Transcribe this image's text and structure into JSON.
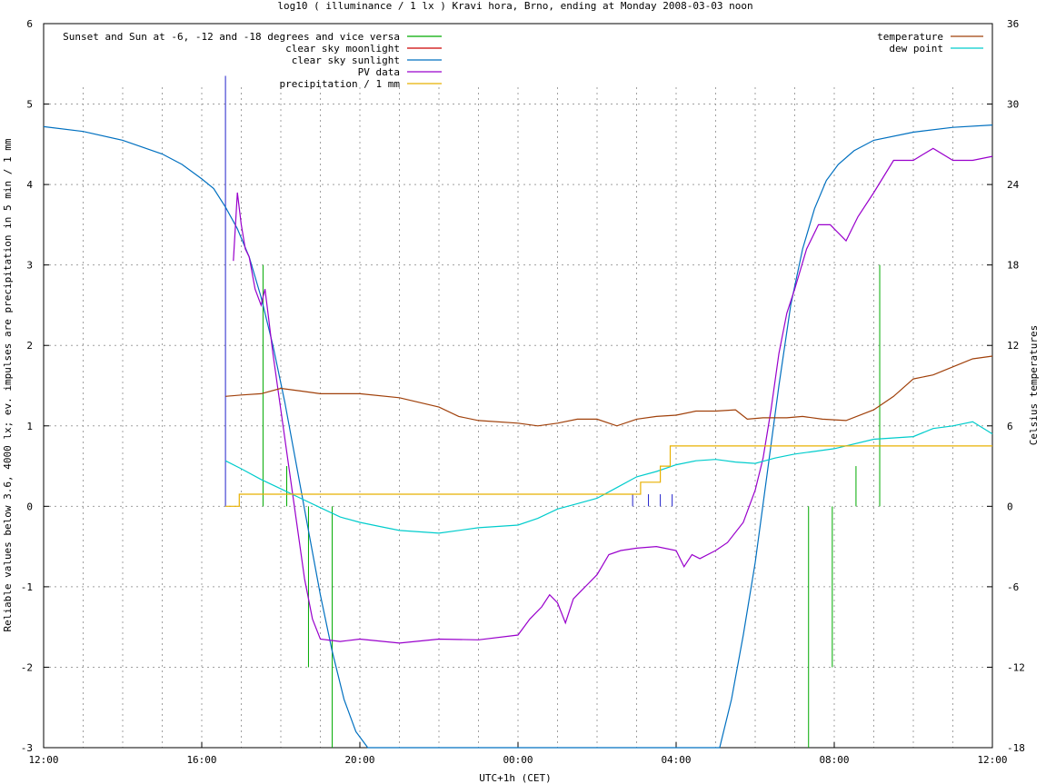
{
  "chart_data": {
    "type": "line",
    "title": "log10 ( illuminance / 1 lx ) Kravi hora, Brno, ending at Monday 2008-03-03 noon",
    "xlabel": "UTC+1h (CET)",
    "ylabel": "Reliable values below 3.6, 4000 lx; ev. impulses are precipitation in 5 min / 1 mm",
    "y2label": "Celsius temperatures",
    "x_ticks": [
      {
        "h": 0,
        "label": "12:00"
      },
      {
        "h": 4,
        "label": "16:00"
      },
      {
        "h": 8,
        "label": "20:00"
      },
      {
        "h": 12,
        "label": "00:00"
      },
      {
        "h": 16,
        "label": "04:00"
      },
      {
        "h": 20,
        "label": "08:00"
      },
      {
        "h": 24,
        "label": "12:00"
      }
    ],
    "xlim_hours": [
      0,
      24
    ],
    "ylim": [
      -3,
      6
    ],
    "y_ticks": [
      -3,
      -2,
      -1,
      0,
      1,
      2,
      3,
      4,
      5,
      6
    ],
    "y2lim": [
      -18,
      36
    ],
    "y2_ticks": [
      -18,
      -12,
      -6,
      0,
      6,
      12,
      18,
      24,
      30,
      36
    ],
    "grid": true,
    "legend_left": [
      {
        "label": "Sunset and Sun at -6, -12 and -18 degrees and vice versa",
        "color": "#00aa00"
      },
      {
        "label": "clear sky moonlight",
        "color": "#cc0000"
      },
      {
        "label": "clear sky sunlight",
        "color": "#0070c0"
      },
      {
        "label": "PV data",
        "color": "#9900cc"
      },
      {
        "label": "precipitation / 1 mm",
        "color": "#e8b000"
      }
    ],
    "legend_right": [
      {
        "label": "temperature",
        "color": "#a0400a"
      },
      {
        "label": "dew point",
        "color": "#00cccc"
      }
    ],
    "sun_event_lines": [
      {
        "h": 5.55,
        "y_top": 3.0
      },
      {
        "h": 6.15,
        "y_top": 0.5
      },
      {
        "h": 6.7,
        "y_top": -2.0
      },
      {
        "h": 7.3,
        "y_top": -3.0
      },
      {
        "h": 19.35,
        "y_top": -3.0
      },
      {
        "h": 19.95,
        "y_top": -2.0
      },
      {
        "h": 20.55,
        "y_top": 0.5
      },
      {
        "h": 21.15,
        "y_top": 3.0
      }
    ],
    "impulses": [
      {
        "h": 4.6,
        "value": 5.35
      },
      {
        "h": 14.9,
        "value": 0.15
      },
      {
        "h": 15.3,
        "value": 0.15
      },
      {
        "h": 15.6,
        "value": 0.15
      },
      {
        "h": 15.9,
        "value": 0.15
      }
    ],
    "series": [
      {
        "name": "clear sky sunlight",
        "color": "#0070c0",
        "x": [
          0,
          1,
          2,
          3,
          3.5,
          4,
          4.3,
          4.6,
          4.9,
          5.2,
          5.5,
          5.8,
          6.1,
          6.4,
          6.7,
          7.0,
          7.3,
          7.6,
          7.9,
          8.2,
          17.1,
          17.4,
          17.7,
          18.0,
          18.3,
          18.6,
          18.9,
          19.2,
          19.5,
          19.8,
          20.1,
          20.5,
          21,
          22,
          23,
          24
        ],
        "y": [
          4.72,
          4.66,
          4.55,
          4.38,
          4.25,
          4.07,
          3.95,
          3.72,
          3.45,
          3.1,
          2.6,
          2.0,
          1.3,
          0.5,
          -0.3,
          -1.1,
          -1.8,
          -2.4,
          -2.8,
          -3.0,
          -3.0,
          -2.4,
          -1.6,
          -0.7,
          0.4,
          1.5,
          2.5,
          3.2,
          3.7,
          4.05,
          4.25,
          4.42,
          4.55,
          4.65,
          4.71,
          4.74
        ]
      },
      {
        "name": "PV data",
        "color": "#9900cc",
        "x": [
          4.8,
          4.9,
          5.0,
          5.1,
          5.2,
          5.35,
          5.5,
          5.6,
          5.7,
          5.8,
          6.0,
          6.2,
          6.4,
          6.6,
          6.8,
          7.0,
          7.5,
          8,
          9,
          10,
          11,
          12,
          12.3,
          12.6,
          12.8,
          13.0,
          13.2,
          13.4,
          13.6,
          13.8,
          14.0,
          14.3,
          14.6,
          15.0,
          15.5,
          16.0,
          16.2,
          16.4,
          16.6,
          17.0,
          17.3,
          17.7,
          18.0,
          18.2,
          18.4,
          18.6,
          18.8,
          19.0,
          19.3,
          19.6,
          19.9,
          20.3,
          20.6,
          21.0,
          21.5,
          22,
          22.5,
          23,
          23.5,
          24
        ],
        "y": [
          3.05,
          3.9,
          3.5,
          3.2,
          3.1,
          2.7,
          2.5,
          2.7,
          2.3,
          1.9,
          1.2,
          0.5,
          -0.2,
          -0.9,
          -1.4,
          -1.65,
          -1.68,
          -1.65,
          -1.7,
          -1.65,
          -1.66,
          -1.6,
          -1.4,
          -1.25,
          -1.1,
          -1.2,
          -1.45,
          -1.15,
          -1.05,
          -0.95,
          -0.85,
          -0.6,
          -0.55,
          -0.52,
          -0.5,
          -0.55,
          -0.75,
          -0.6,
          -0.65,
          -0.55,
          -0.45,
          -0.2,
          0.2,
          0.6,
          1.2,
          1.9,
          2.4,
          2.7,
          3.2,
          3.5,
          3.5,
          3.3,
          3.6,
          3.9,
          4.3,
          4.3,
          4.45,
          4.3,
          4.3,
          4.35
        ]
      },
      {
        "name": "temperature",
        "axis": "y2",
        "color": "#a0400a",
        "x": [
          4.6,
          5.0,
          5.5,
          6.0,
          6.5,
          7.0,
          8.0,
          9.0,
          10.0,
          10.5,
          11.0,
          12.0,
          12.5,
          13.0,
          13.5,
          14.0,
          14.5,
          15.0,
          15.5,
          16.0,
          16.5,
          17.0,
          17.5,
          17.8,
          18.2,
          18.8,
          19.2,
          19.7,
          20.3,
          21.0,
          21.5,
          22.0,
          22.5,
          23.0,
          23.5,
          24.0
        ],
        "y": [
          8.2,
          8.3,
          8.4,
          8.8,
          8.6,
          8.4,
          8.4,
          8.1,
          7.4,
          6.7,
          6.4,
          6.2,
          6.0,
          6.2,
          6.5,
          6.5,
          6.0,
          6.5,
          6.7,
          6.8,
          7.1,
          7.1,
          7.2,
          6.5,
          6.6,
          6.6,
          6.7,
          6.5,
          6.4,
          7.2,
          8.2,
          9.5,
          9.8,
          10.4,
          11.0,
          11.2
        ]
      },
      {
        "name": "dew point",
        "axis": "y2",
        "color": "#00cccc",
        "x": [
          4.6,
          5.0,
          5.5,
          6.0,
          6.5,
          7.0,
          7.5,
          8.0,
          8.5,
          9.0,
          10.0,
          11.0,
          12.0,
          12.5,
          13.0,
          13.5,
          14.0,
          14.5,
          15.0,
          15.5,
          16.0,
          16.5,
          17.0,
          17.5,
          18.0,
          18.5,
          19.0,
          20.0,
          21.0,
          22.0,
          22.5,
          23.0,
          23.5,
          24.0
        ],
        "y": [
          3.4,
          2.8,
          2.0,
          1.3,
          0.6,
          -0.1,
          -0.8,
          -1.2,
          -1.5,
          -1.8,
          -2.0,
          -1.6,
          -1.4,
          -0.9,
          -0.2,
          0.2,
          0.6,
          1.4,
          2.2,
          2.6,
          3.1,
          3.4,
          3.5,
          3.3,
          3.2,
          3.6,
          3.9,
          4.3,
          5.0,
          5.2,
          5.8,
          6.0,
          6.3,
          5.4
        ]
      },
      {
        "name": "precipitation / 1 mm",
        "color": "#e8b000",
        "step": true,
        "x": [
          4.6,
          4.95,
          14.8,
          15.1,
          15.6,
          15.85,
          24.0
        ],
        "y": [
          0.0,
          0.15,
          0.15,
          0.3,
          0.5,
          0.75,
          0.75
        ]
      }
    ]
  }
}
